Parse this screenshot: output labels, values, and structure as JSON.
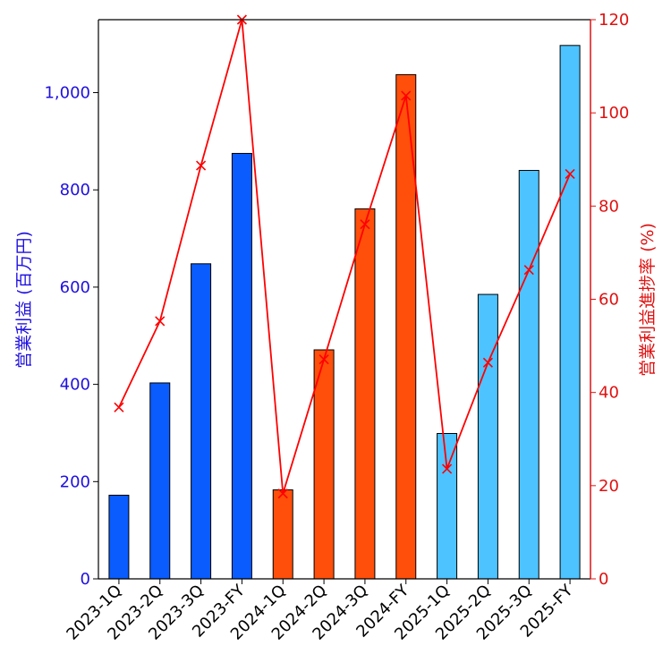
{
  "chart_data": {
    "type": "bar",
    "categories": [
      "2023-1Q",
      "2023-2Q",
      "2023-3Q",
      "2023-FY",
      "2024-1Q",
      "2024-2Q",
      "2024-3Q",
      "2024-FY",
      "2025-1Q",
      "2025-2Q",
      "2025-3Q",
      "2025-FY"
    ],
    "series": [
      {
        "type": "bar",
        "axis": "left",
        "values": [
          172,
          403,
          648,
          875,
          183,
          471,
          761,
          1037,
          299,
          585,
          840,
          1097
        ],
        "colors": [
          "#0a5cff",
          "#0a5cff",
          "#0a5cff",
          "#0a5cff",
          "#ff4f0a",
          "#ff4f0a",
          "#ff4f0a",
          "#ff4f0a",
          "#4dc3ff",
          "#4dc3ff",
          "#4dc3ff",
          "#4dc3ff"
        ]
      },
      {
        "type": "line",
        "axis": "right",
        "marker": "x",
        "color": "#ff0000",
        "values": [
          36.8,
          55.3,
          88.7,
          120.0,
          18.3,
          47.1,
          76.1,
          103.7,
          23.6,
          46.4,
          66.3,
          86.9
        ]
      }
    ],
    "ylabel": "営業利益 (百万円)",
    "ylabel_right": "営業利益進捗率 (%)",
    "ylim": [
      0,
      1150
    ],
    "ylim_right": [
      0,
      120
    ],
    "yticks": [
      "0",
      "200",
      "400",
      "600",
      "800",
      "1,000"
    ],
    "ytick_values": [
      0,
      200,
      400,
      600,
      800,
      1000
    ],
    "yticks_right": [
      "0",
      "20",
      "40",
      "60",
      "80",
      "100",
      "120"
    ],
    "ytick_values_right": [
      0,
      20,
      40,
      60,
      80,
      100,
      120
    ],
    "left_axis_color": "#1f10e0",
    "right_axis_color": "#e01010",
    "grid": false
  }
}
